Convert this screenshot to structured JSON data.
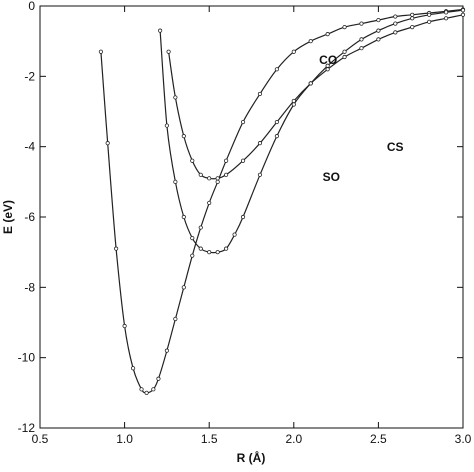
{
  "chart_data": {
    "type": "line",
    "title": "",
    "xlabel": "R (Å)",
    "ylabel": "E (eV)",
    "xlim": [
      0.5,
      3.0
    ],
    "ylim": [
      -12,
      0
    ],
    "xticks": [
      "0.5",
      "1.0",
      "1.5",
      "2.0",
      "2.5",
      "3.0"
    ],
    "yticks": [
      "0",
      "-2",
      "-4",
      "-6",
      "-8",
      "-10",
      "-12"
    ],
    "grid": false,
    "legend": "none",
    "line_color": "#222222",
    "series": [
      {
        "name": "CO",
        "x": [
          0.86,
          0.9,
          0.95,
          1.0,
          1.05,
          1.1,
          1.13,
          1.17,
          1.2,
          1.25,
          1.3,
          1.35,
          1.4,
          1.45,
          1.5,
          1.55,
          1.6,
          1.7,
          1.8,
          1.9,
          2.0,
          2.1,
          2.2,
          2.3,
          2.4,
          2.5,
          2.6,
          2.7,
          2.8,
          2.9,
          3.0
        ],
        "y": [
          -1.3,
          -3.9,
          -6.9,
          -9.1,
          -10.3,
          -10.9,
          -11.0,
          -10.9,
          -10.6,
          -9.8,
          -8.9,
          -8.0,
          -7.1,
          -6.3,
          -5.6,
          -5.0,
          -4.4,
          -3.3,
          -2.5,
          -1.8,
          -1.3,
          -1.0,
          -0.8,
          -0.6,
          -0.5,
          -0.4,
          -0.3,
          -0.25,
          -0.2,
          -0.15,
          -0.1
        ]
      },
      {
        "name": "SO",
        "x": [
          1.21,
          1.25,
          1.3,
          1.35,
          1.4,
          1.45,
          1.5,
          1.55,
          1.6,
          1.65,
          1.7,
          1.8,
          1.9,
          2.0,
          2.1,
          2.2,
          2.3,
          2.4,
          2.5,
          2.6,
          2.7,
          2.8,
          2.9,
          3.0
        ],
        "y": [
          -0.7,
          -3.4,
          -5.0,
          -6.0,
          -6.6,
          -6.9,
          -7.0,
          -7.0,
          -6.9,
          -6.5,
          -6.0,
          -4.8,
          -3.7,
          -2.8,
          -2.2,
          -1.7,
          -1.3,
          -0.95,
          -0.7,
          -0.5,
          -0.35,
          -0.25,
          -0.18,
          -0.12
        ]
      },
      {
        "name": "CS",
        "x": [
          1.26,
          1.3,
          1.35,
          1.4,
          1.45,
          1.5,
          1.55,
          1.6,
          1.7,
          1.8,
          1.9,
          2.0,
          2.1,
          2.2,
          2.3,
          2.4,
          2.5,
          2.6,
          2.7,
          2.8,
          2.9,
          3.0
        ],
        "y": [
          -1.3,
          -2.6,
          -3.7,
          -4.4,
          -4.8,
          -4.9,
          -4.9,
          -4.8,
          -4.4,
          -3.9,
          -3.3,
          -2.7,
          -2.2,
          -1.8,
          -1.45,
          -1.2,
          -0.95,
          -0.75,
          -0.6,
          -0.45,
          -0.35,
          -0.25
        ]
      }
    ],
    "annotations": [
      {
        "text": "CO",
        "x": 2.15,
        "y": -1.65
      },
      {
        "text": "SO",
        "x": 2.17,
        "y": -4.98
      },
      {
        "text": "CS",
        "x": 2.55,
        "y": -4.13
      }
    ]
  }
}
